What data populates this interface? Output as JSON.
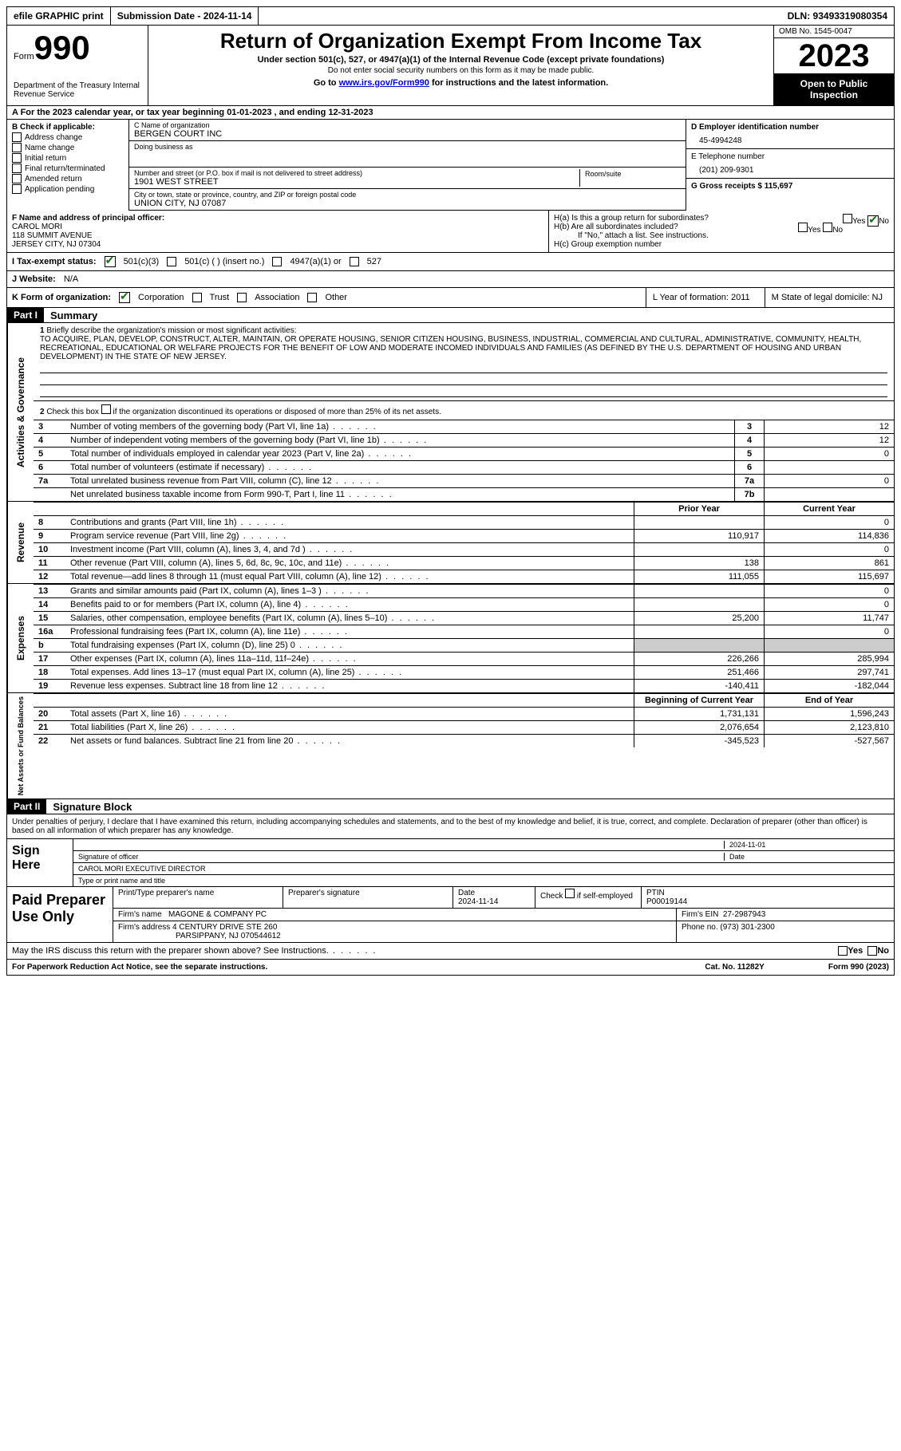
{
  "topbar": {
    "efile": "efile GRAPHIC print",
    "submission": "Submission Date - 2024-11-14",
    "dln": "DLN: 93493319080354"
  },
  "header": {
    "form_label": "Form",
    "form_no": "990",
    "title": "Return of Organization Exempt From Income Tax",
    "sub": "Under section 501(c), 527, or 4947(a)(1) of the Internal Revenue Code (except private foundations)",
    "note": "Do not enter social security numbers on this form as it may be made public.",
    "go": "Go to www.irs.gov/Form990 for instructions and the latest information.",
    "dept": "Department of the Treasury Internal Revenue Service",
    "omb": "OMB No. 1545-0047",
    "year": "2023",
    "open": "Open to Public Inspection"
  },
  "a": {
    "line": "A For the 2023 calendar year, or tax year beginning 01-01-2023   , and ending 12-31-2023"
  },
  "b": {
    "label": "B Check if applicable:",
    "items": [
      "Address change",
      "Name change",
      "Initial return",
      "Final return/terminated",
      "Amended return",
      "Application pending"
    ]
  },
  "c": {
    "name_label": "C Name of organization",
    "name": "BERGEN COURT INC",
    "dba_label": "Doing business as",
    "street_label": "Number and street (or P.O. box if mail is not delivered to street address)",
    "street": "1901 WEST STREET",
    "room_label": "Room/suite",
    "city_label": "City or town, state or province, country, and ZIP or foreign postal code",
    "city": "UNION CITY, NJ  07087"
  },
  "d": {
    "ein_label": "D Employer identification number",
    "ein": "45-4994248"
  },
  "e": {
    "tel_label": "E Telephone number",
    "tel": "(201) 209-9301"
  },
  "g": {
    "gross_label": "G Gross receipts $ 115,697"
  },
  "f": {
    "label": "F  Name and address of principal officer:",
    "name": "CAROL MORI",
    "addr1": "118 SUMMIT AVENUE",
    "addr2": "JERSEY CITY, NJ  07304"
  },
  "h": {
    "a": "H(a)  Is this a group return for subordinates?",
    "b": "H(b)  Are all subordinates included?",
    "note": "If \"No,\" attach a list. See instructions.",
    "c": "H(c)  Group exemption number"
  },
  "i": {
    "label": "I  Tax-exempt status:",
    "opts": [
      "501(c)(3)",
      "501(c) (  ) (insert no.)",
      "4947(a)(1) or",
      "527"
    ]
  },
  "j": {
    "label": "J  Website:",
    "val": "N/A"
  },
  "k": {
    "label": "K Form of organization:",
    "opts": [
      "Corporation",
      "Trust",
      "Association",
      "Other"
    ]
  },
  "l": {
    "label": "L Year of formation: 2011"
  },
  "m": {
    "label": "M State of legal domicile: NJ"
  },
  "part1": {
    "label": "Part I",
    "title": "Summary",
    "q1": "Briefly describe the organization's mission or most significant activities:",
    "mission": "TO ACQUIRE, PLAN, DEVELOP, CONSTRUCT, ALTER, MAINTAIN, OR OPERATE HOUSING, SENIOR CITIZEN HOUSING, BUSINESS, INDUSTRIAL, COMMERCIAL AND CULTURAL, ADMINISTRATIVE, COMMUNITY, HEALTH, RECREATIONAL, EDUCATIONAL OR WELFARE PROJECTS FOR THE BENEFIT OF LOW AND MODERATE INCOMED INDIVIDUALS AND FAMILIES (AS DEFINED BY THE U.S. DEPARTMENT OF HOUSING AND URBAN DEVELOPMENT) IN THE STATE OF NEW JERSEY.",
    "q2": "Check this box     if the organization discontinued its operations or disposed of more than 25% of its net assets.",
    "rows_gov": [
      {
        "n": "3",
        "t": "Number of voting members of the governing body (Part VI, line 1a)",
        "bn": "3",
        "v": "12"
      },
      {
        "n": "4",
        "t": "Number of independent voting members of the governing body (Part VI, line 1b)",
        "bn": "4",
        "v": "12"
      },
      {
        "n": "5",
        "t": "Total number of individuals employed in calendar year 2023 (Part V, line 2a)",
        "bn": "5",
        "v": "0"
      },
      {
        "n": "6",
        "t": "Total number of volunteers (estimate if necessary)",
        "bn": "6",
        "v": ""
      },
      {
        "n": "7a",
        "t": "Total unrelated business revenue from Part VIII, column (C), line 12",
        "bn": "7a",
        "v": "0"
      },
      {
        "n": "",
        "t": "Net unrelated business taxable income from Form 990-T, Part I, line 11",
        "bn": "7b",
        "v": ""
      }
    ],
    "prior_head": "Prior Year",
    "curr_head": "Current Year",
    "rev_rows": [
      {
        "n": "8",
        "t": "Contributions and grants (Part VIII, line 1h)",
        "p": "",
        "c": "0"
      },
      {
        "n": "9",
        "t": "Program service revenue (Part VIII, line 2g)",
        "p": "110,917",
        "c": "114,836"
      },
      {
        "n": "10",
        "t": "Investment income (Part VIII, column (A), lines 3, 4, and 7d )",
        "p": "",
        "c": "0"
      },
      {
        "n": "11",
        "t": "Other revenue (Part VIII, column (A), lines 5, 6d, 8c, 9c, 10c, and 11e)",
        "p": "138",
        "c": "861"
      },
      {
        "n": "12",
        "t": "Total revenue—add lines 8 through 11 (must equal Part VIII, column (A), line 12)",
        "p": "111,055",
        "c": "115,697"
      }
    ],
    "exp_rows": [
      {
        "n": "13",
        "t": "Grants and similar amounts paid (Part IX, column (A), lines 1–3 )",
        "p": "",
        "c": "0"
      },
      {
        "n": "14",
        "t": "Benefits paid to or for members (Part IX, column (A), line 4)",
        "p": "",
        "c": "0"
      },
      {
        "n": "15",
        "t": "Salaries, other compensation, employee benefits (Part IX, column (A), lines 5–10)",
        "p": "25,200",
        "c": "11,747"
      },
      {
        "n": "16a",
        "t": "Professional fundraising fees (Part IX, column (A), line 11e)",
        "p": "",
        "c": "0"
      },
      {
        "n": "b",
        "t": "Total fundraising expenses (Part IX, column (D), line 25) 0",
        "p": "grey",
        "c": "grey"
      },
      {
        "n": "17",
        "t": "Other expenses (Part IX, column (A), lines 11a–11d, 11f–24e)",
        "p": "226,266",
        "c": "285,994"
      },
      {
        "n": "18",
        "t": "Total expenses. Add lines 13–17 (must equal Part IX, column (A), line 25)",
        "p": "251,466",
        "c": "297,741"
      },
      {
        "n": "19",
        "t": "Revenue less expenses. Subtract line 18 from line 12",
        "p": "-140,411",
        "c": "-182,044"
      }
    ],
    "na_head1": "Beginning of Current Year",
    "na_head2": "End of Year",
    "na_rows": [
      {
        "n": "20",
        "t": "Total assets (Part X, line 16)",
        "p": "1,731,131",
        "c": "1,596,243"
      },
      {
        "n": "21",
        "t": "Total liabilities (Part X, line 26)",
        "p": "2,076,654",
        "c": "2,123,810"
      },
      {
        "n": "22",
        "t": "Net assets or fund balances. Subtract line 21 from line 20",
        "p": "-345,523",
        "c": "-527,567"
      }
    ]
  },
  "part2": {
    "label": "Part II",
    "title": "Signature Block",
    "decl": "Under penalties of perjury, I declare that I have examined this return, including accompanying schedules and statements, and to the best of my knowledge and belief, it is true, correct, and complete. Declaration of preparer (other than officer) is based on all information of which preparer has any knowledge."
  },
  "sign": {
    "label": "Sign Here",
    "date": "2024-11-01",
    "sig_label": "Signature of officer",
    "name": "CAROL MORI  EXECUTIVE DIRECTOR",
    "type_label": "Type or print name and title",
    "date_label": "Date"
  },
  "prep": {
    "label": "Paid Preparer Use Only",
    "h1": "Print/Type preparer's name",
    "h2": "Preparer's signature",
    "h3": "Date",
    "date": "2024-11-14",
    "h4_chk": "Check",
    "h4_if": "if self-employed",
    "h5": "PTIN",
    "ptin": "P00019144",
    "firm_name_label": "Firm's name",
    "firm_name": "MAGONE & COMPANY PC",
    "firm_ein_label": "Firm's EIN",
    "firm_ein": "27-2987943",
    "firm_addr_label": "Firm's address",
    "firm_addr1": "4 CENTURY DRIVE STE 260",
    "firm_addr2": "PARSIPPANY, NJ  070544612",
    "phone_label": "Phone no.",
    "phone": "(973) 301-2300"
  },
  "discuss": {
    "text": "May the IRS discuss this return with the preparer shown above? See Instructions.",
    "yes": "Yes",
    "no": "No"
  },
  "footer": {
    "left": "For Paperwork Reduction Act Notice, see the separate instructions.",
    "mid": "Cat. No. 11282Y",
    "right": "Form 990 (2023)"
  },
  "vert": {
    "gov": "Activities & Governance",
    "rev": "Revenue",
    "exp": "Expenses",
    "na": "Net Assets or Fund Balances"
  }
}
